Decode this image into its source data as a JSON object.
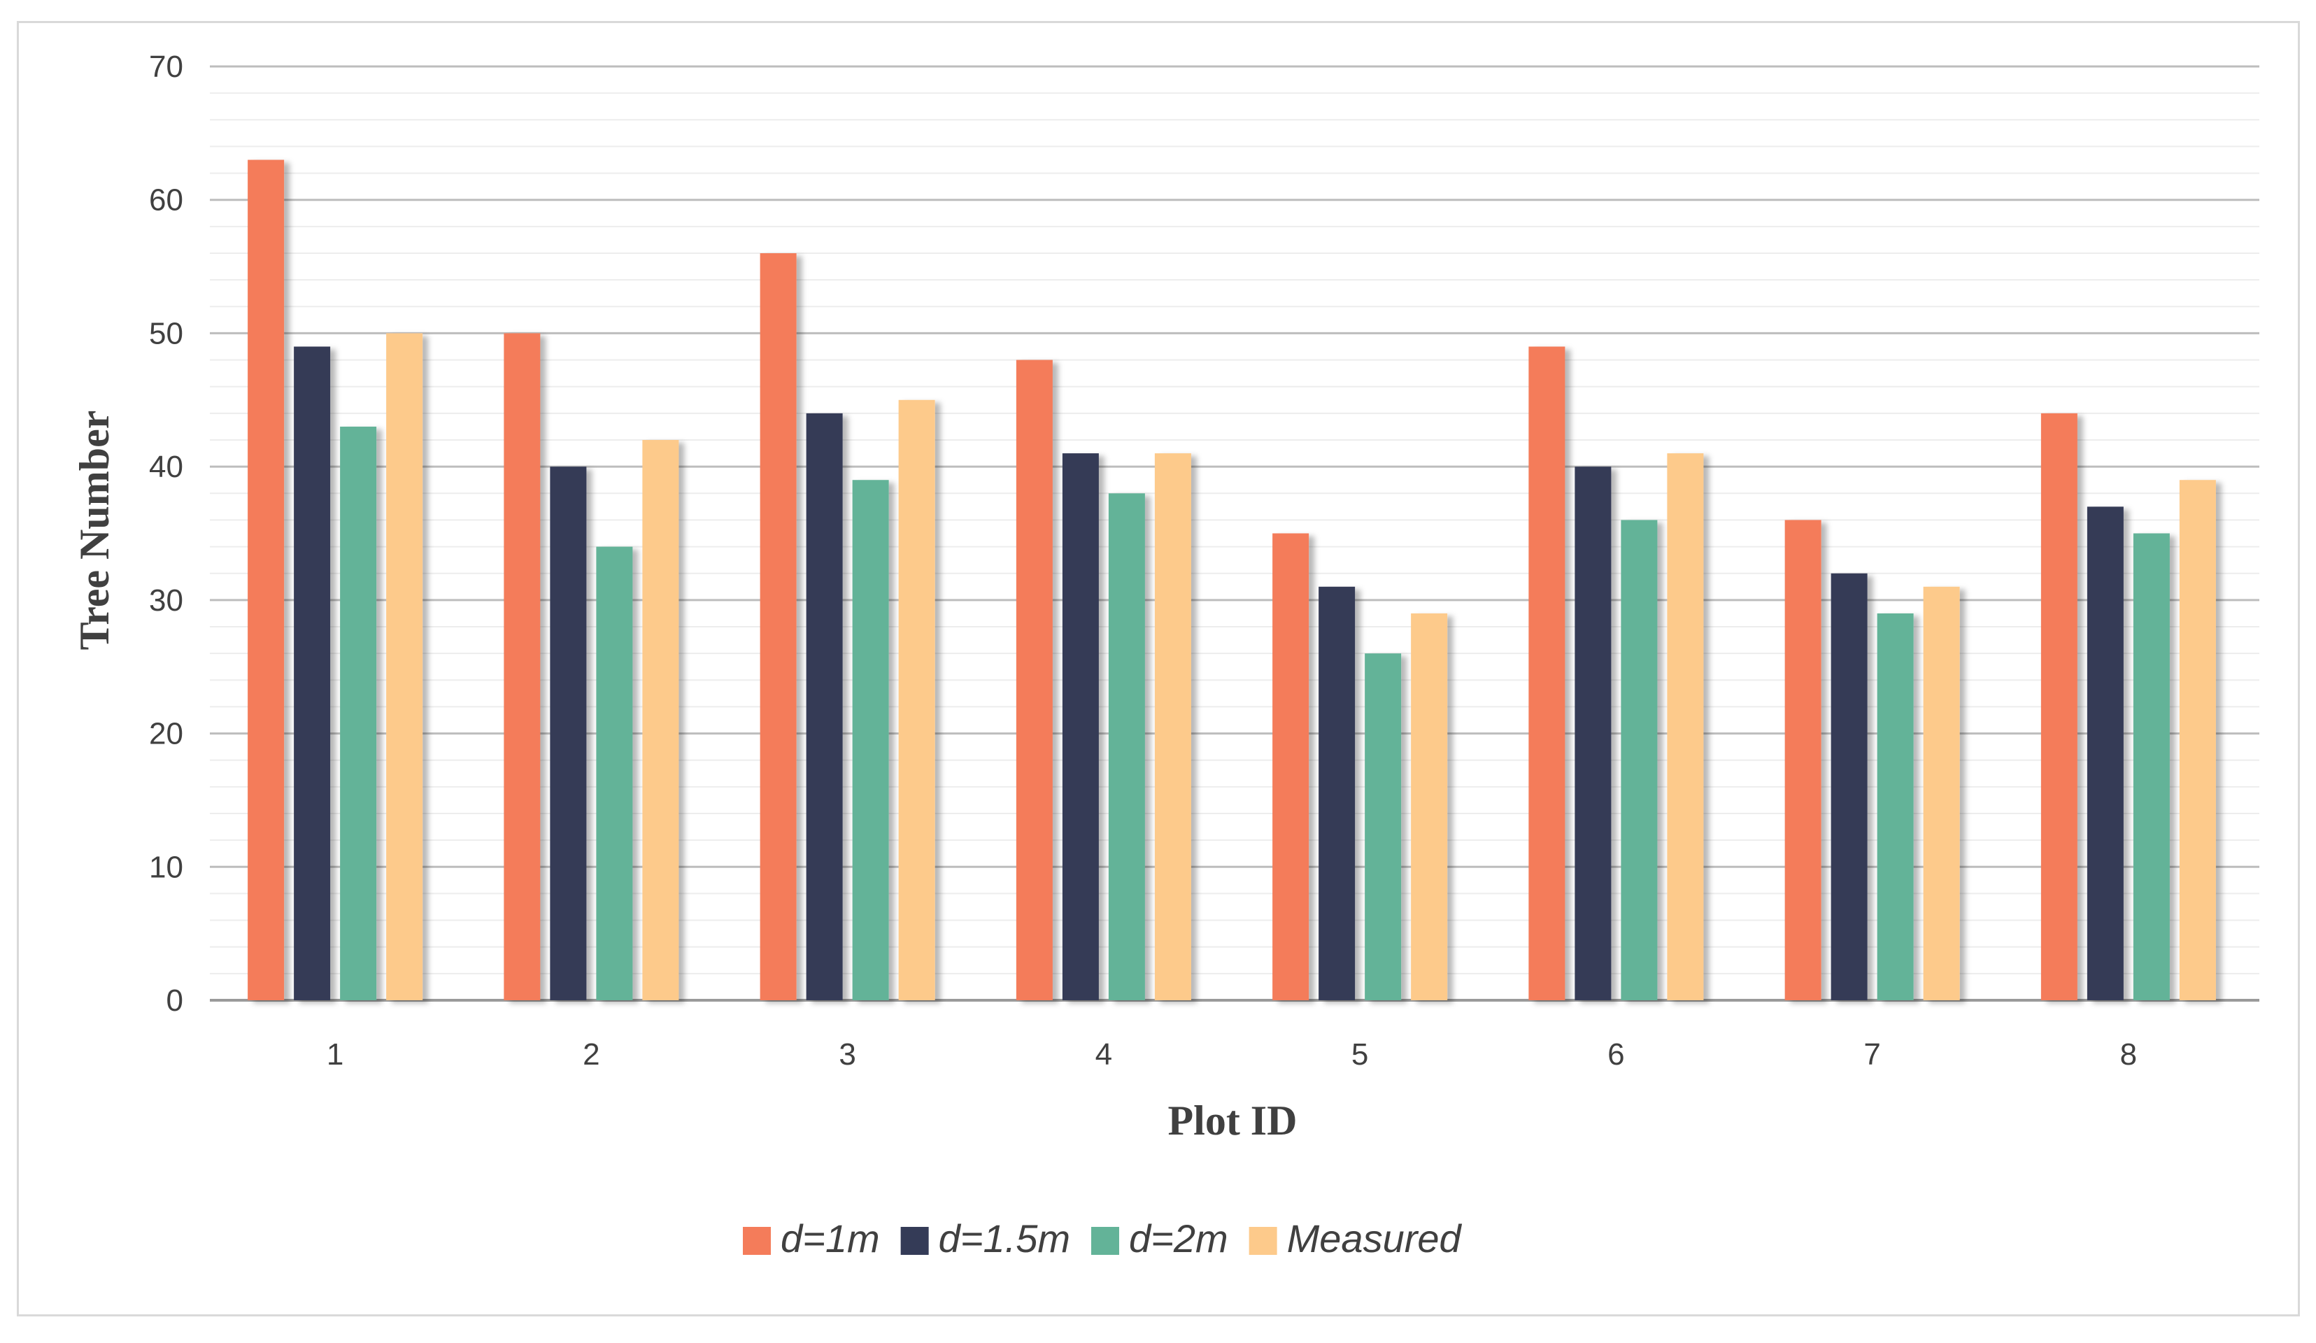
{
  "chart_data": {
    "type": "bar",
    "title": "",
    "xlabel": "Plot ID",
    "ylabel": "Tree Number",
    "ylim": [
      0,
      70
    ],
    "yticks": [
      0,
      10,
      20,
      30,
      40,
      50,
      60,
      70
    ],
    "grid": true,
    "legend_position": "bottom-center",
    "categories": [
      "1",
      "2",
      "3",
      "4",
      "5",
      "6",
      "7",
      "8"
    ],
    "series": [
      {
        "name": "d=1m",
        "color": "#f47c5a",
        "values": [
          63,
          50,
          56,
          48,
          35,
          49,
          36,
          44
        ]
      },
      {
        "name": "d=1.5m",
        "color": "#343b57",
        "values": [
          49,
          40,
          44,
          41,
          31,
          40,
          32,
          37
        ]
      },
      {
        "name": "d=2m",
        "color": "#63b398",
        "values": [
          43,
          34,
          39,
          38,
          26,
          36,
          29,
          35
        ]
      },
      {
        "name": "Measured",
        "color": "#fdca8b",
        "values": [
          50,
          42,
          45,
          41,
          29,
          41,
          31,
          39
        ]
      }
    ]
  }
}
